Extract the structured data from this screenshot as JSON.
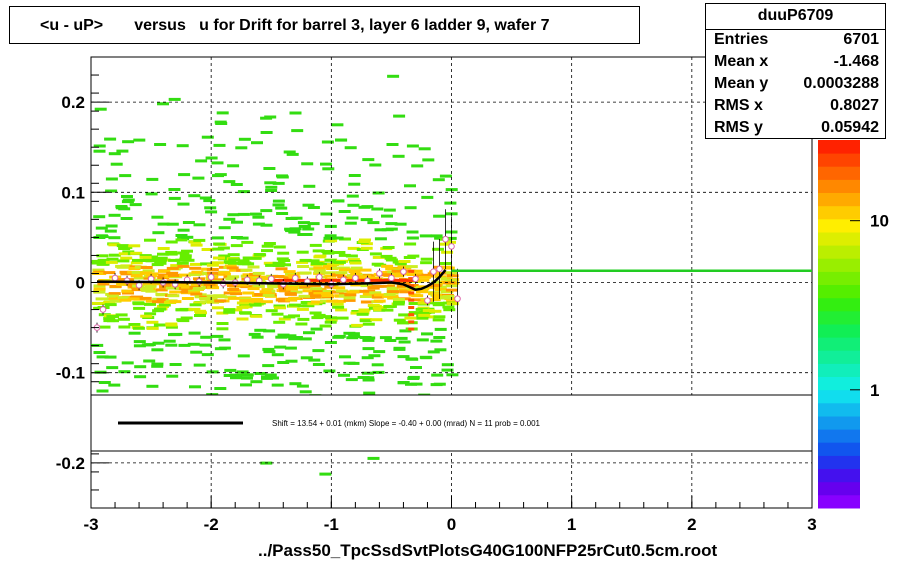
{
  "title": "<u - uP>       versus   u for Drift for barrel 3, layer 6 ladder 9, wafer 7",
  "stats": {
    "name": "duuP6709",
    "rows": [
      {
        "label": "Entries",
        "value": "6701"
      },
      {
        "label": "Mean x",
        "value": "-1.468"
      },
      {
        "label": "Mean y",
        "value": "0.0003288"
      },
      {
        "label": "RMS x",
        "value": "0.8027"
      },
      {
        "label": "RMS y",
        "value": "0.05942"
      }
    ]
  },
  "fit_legend": "Shift =    13.54 + 0.01 (mkm) Slope =    -0.40 + 0.00 (mrad)  N = 11 prob = 0.001",
  "colors": {
    "fit_line": "#000000",
    "green_line": "#22cc22",
    "profile_points": "#dd66aa"
  },
  "chart_data": {
    "type": "heatmap",
    "title": "<u - uP>       versus   u for Drift for barrel 3, layer 6 ladder 9, wafer 7",
    "xlabel": "../Pass50_TpcSsdSvtPlotsG40G100NFP25rCut0.5cm.root",
    "ylabel": "",
    "xlim": [
      -3,
      3
    ],
    "ylim": [
      -0.25,
      0.25
    ],
    "x_ticks": [
      "-3",
      "-2",
      "-1",
      "0",
      "1",
      "2",
      "3"
    ],
    "y_ticks": [
      "-0.2",
      "-0.1",
      "0",
      "0.1",
      "0.2"
    ],
    "z_scale": "log",
    "z_ticks": [
      "1",
      "10"
    ],
    "z_tick_values": [
      1,
      10
    ],
    "grid": true,
    "profile": {
      "x": [
        -2.95,
        -2.9,
        -2.8,
        -2.7,
        -2.6,
        -2.5,
        -2.4,
        -2.3,
        -2.2,
        -2.1,
        -2.0,
        -1.9,
        -1.8,
        -1.7,
        -1.6,
        -1.5,
        -1.4,
        -1.3,
        -1.2,
        -1.1,
        -1.0,
        -0.9,
        -0.8,
        -0.7,
        -0.6,
        -0.5,
        -0.4,
        -0.3,
        -0.2,
        -0.15,
        -0.1,
        -0.05,
        0.0,
        0.05
      ],
      "y": [
        -0.05,
        -0.03,
        0.005,
        0.002,
        -0.003,
        0.004,
        0.0,
        -0.002,
        0.003,
        0.001,
        0.006,
        -0.001,
        0.0,
        0.003,
        0.002,
        0.004,
        -0.002,
        0.005,
        0.001,
        0.006,
        -0.002,
        0.003,
        0.005,
        0.002,
        0.01,
        0.005,
        0.012,
        0.004,
        -0.02,
        0.012,
        0.015,
        0.048,
        0.04,
        -0.018
      ]
    },
    "fit_curve": {
      "x": [
        -2.95,
        -2.5,
        -2.0,
        -1.5,
        -1.0,
        -0.7,
        -0.5,
        -0.4,
        -0.3,
        -0.25,
        -0.2,
        -0.15,
        -0.1,
        -0.05
      ],
      "y": [
        0.001,
        0.0005,
        0.0,
        -0.001,
        -0.002,
        -0.001,
        0.0,
        -0.002,
        -0.008,
        -0.007,
        -0.004,
        0.0,
        0.006,
        0.014
      ]
    },
    "reference_line": {
      "x": [
        0.0,
        3.0
      ],
      "y": 0.013
    }
  }
}
